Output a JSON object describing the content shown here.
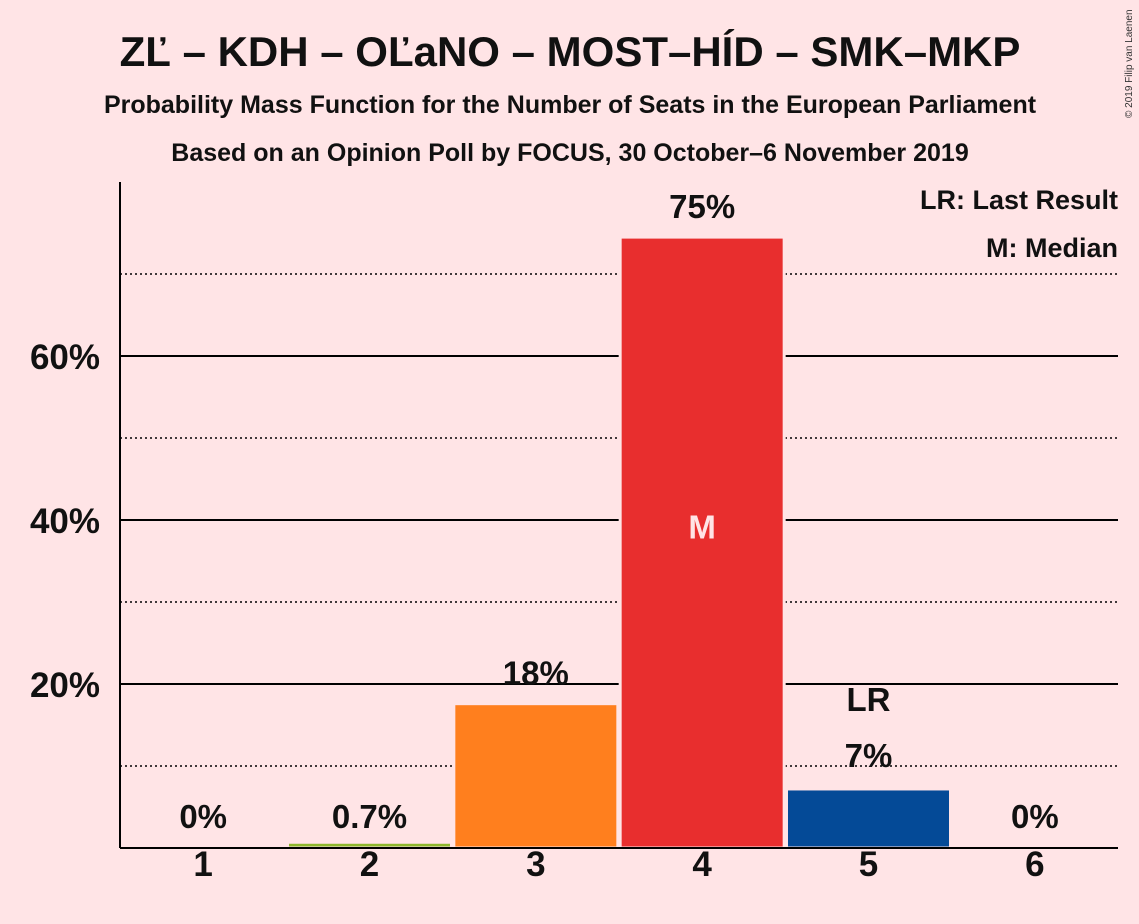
{
  "title": "ZĽ – KDH – OĽaNO – MOST–HÍD – SMK–MKP",
  "subtitle1": "Probability Mass Function for the Number of Seats in the European Parliament",
  "subtitle2": "Based on an Opinion Poll by FOCUS, 30 October–6 November 2019",
  "copyright": "© 2019 Filip van Laenen",
  "legend": {
    "lr": "LR: Last Result",
    "m": "M: Median"
  },
  "chart_data": {
    "type": "bar",
    "categories": [
      "1",
      "2",
      "3",
      "4",
      "5",
      "6"
    ],
    "values": [
      0,
      0.7,
      17.6,
      74.5,
      7.2,
      0
    ],
    "value_labels": [
      "0%",
      "0.7%",
      "18%",
      "75%",
      "7%",
      "0%"
    ],
    "colors": [
      "#8DB72C",
      "#8DB72C",
      "#FF7F1E",
      "#E82E2E",
      "#044A97",
      "#8DB72C"
    ],
    "median_index": 3,
    "median_marker": "M",
    "last_result_index": 4,
    "last_result_marker": "LR",
    "yticks": [
      20,
      40,
      60
    ],
    "ytick_labels": [
      "20%",
      "40%",
      "60%"
    ],
    "minor_gridlines": [
      10,
      30,
      50,
      70
    ],
    "ylim": [
      0,
      80
    ],
    "legend_position": "top-right"
  }
}
